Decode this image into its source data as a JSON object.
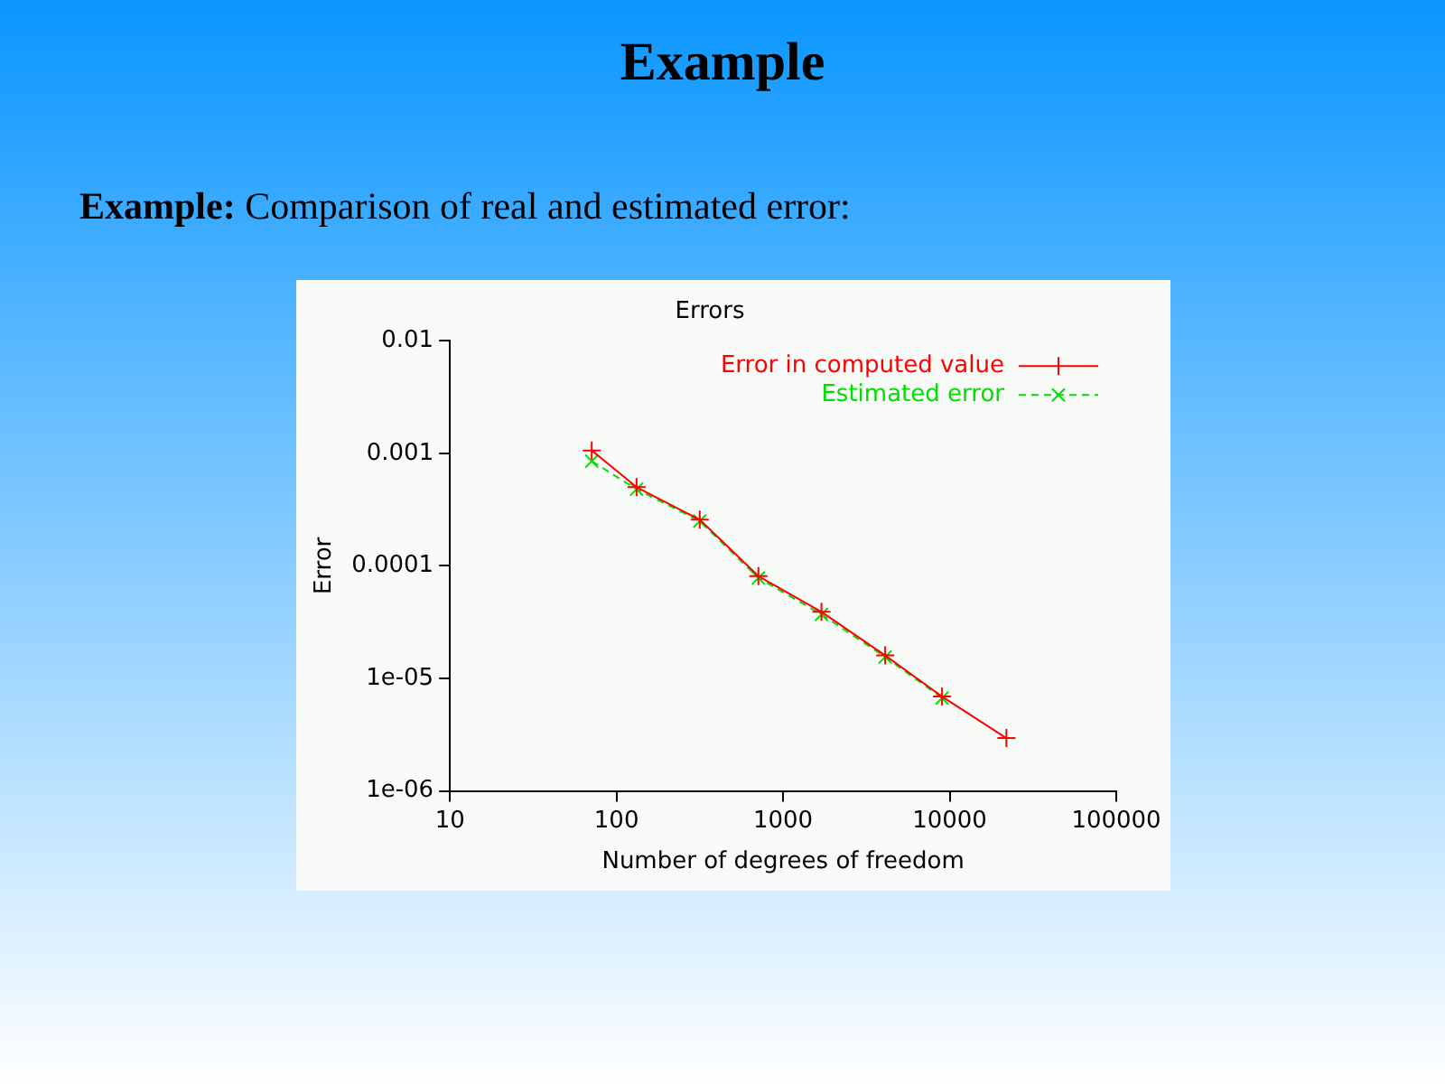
{
  "chart_data": {
    "type": "line",
    "title": "Errors",
    "xlabel": "Number of degrees of freedom",
    "ylabel": "Error",
    "annotations": [
      "Example",
      "Example:",
      "Comparison of real and estimated error:"
    ],
    "log": "xy",
    "grid": false,
    "legend": "top right",
    "marker": "cross",
    "xlim": [
      10,
      100000
    ],
    "xticks": [
      10,
      100,
      1000,
      10000,
      100000
    ],
    "ylim": [
      1e-06,
      0.01
    ],
    "yticks": [
      {
        "value": 1e-06,
        "label": "1e-06"
      },
      {
        "value": 1e-05,
        "label": "1e-05"
      },
      0.0001,
      0.001,
      0.01
    ],
    "series": [
      {
        "name": "Error in computed value",
        "color": "#ff0000",
        "line_style": "solid",
        "x": [
          71,
          132,
          316,
          711,
          1700,
          4100,
          9000,
          21900
        ],
        "values": [
          0.00106,
          0.0005,
          0.000257,
          8.1e-05,
          3.9e-05,
          1.6e-05,
          6.9e-06,
          2.95e-06
        ]
      },
      {
        "name": "Estimated error",
        "color": "#00dd00",
        "line_style": "dashed",
        "x": [
          71,
          132,
          316,
          711,
          1700,
          4100,
          9000
        ],
        "values": [
          0.00085,
          0.00048,
          0.00025,
          7.8e-05,
          3.7e-05,
          1.55e-05,
          6.7e-06
        ]
      }
    ]
  }
}
